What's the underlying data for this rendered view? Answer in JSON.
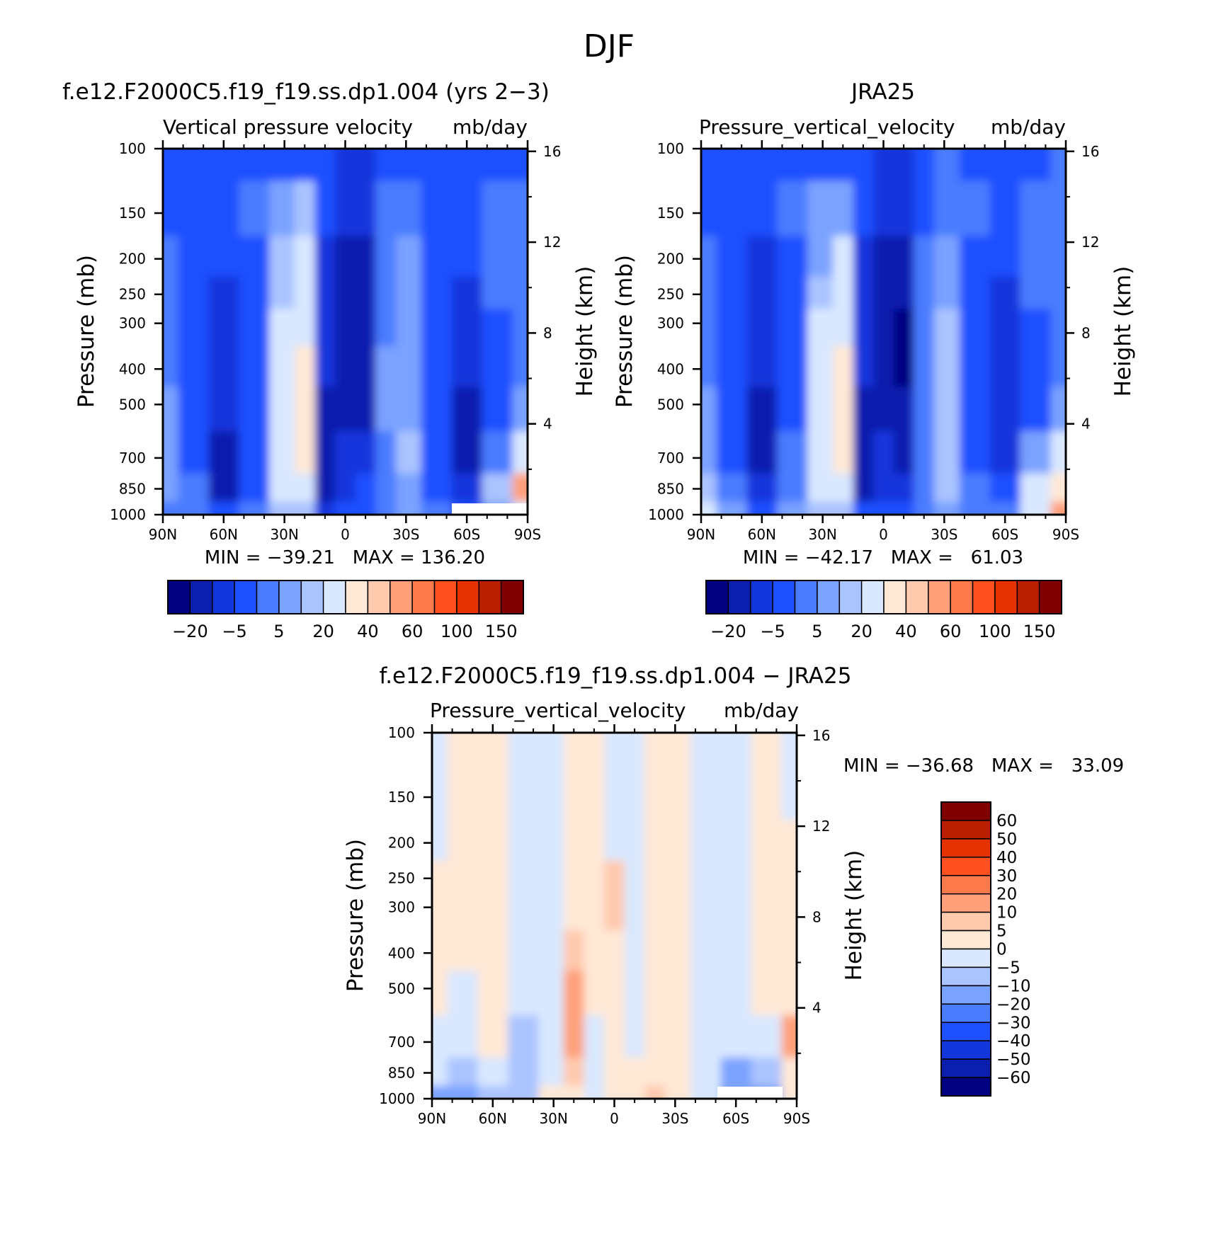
{
  "figure_title": "DJF",
  "chart_data": [
    {
      "type": "heatmap",
      "title": "f.e12.F2000C5.f19_f19.ss.dp1.004 (yrs 2−3)",
      "subtitle": "Vertical pressure velocity",
      "units": "mb/day",
      "ylabel": "Pressure (mb)",
      "y2label": "Height (km)",
      "xticks": [
        "90N",
        "60N",
        "30N",
        "0",
        "30S",
        "60S",
        "90S"
      ],
      "yticks": [
        "100",
        "150",
        "200",
        "250",
        "300",
        "400",
        "500",
        "700",
        "850",
        "1000"
      ],
      "y2ticks": [
        "16",
        "12",
        "8",
        "4"
      ],
      "stats": "MIN = −39.21   MAX = 136.20",
      "colorbar": {
        "labels": [
          "−20",
          "−5",
          "5",
          "20",
          "40",
          "60",
          "100",
          "150"
        ],
        "colors": [
          "#000080",
          "#0a1fae",
          "#1236dc",
          "#1e50ff",
          "#4a7cff",
          "#7aa2ff",
          "#aac4ff",
          "#d9e8ff",
          "#ffe8d6",
          "#ffc9ad",
          "#ffa07a",
          "#ff7a4a",
          "#ff5020",
          "#e63200",
          "#b81e00",
          "#800000"
        ]
      },
      "lat_columns": [
        90,
        75,
        60,
        45,
        30,
        20,
        10,
        0,
        -10,
        -20,
        -30,
        -45,
        -60,
        -75,
        -90
      ],
      "pressure_rows": [
        100,
        150,
        200,
        250,
        300,
        400,
        500,
        700,
        850,
        1000
      ],
      "values": [
        [
          -8,
          -8,
          -7,
          -6,
          -6,
          -7,
          -10,
          -12,
          -12,
          -8,
          -6,
          -6,
          -7,
          -6,
          -6
        ],
        [
          -6,
          -7,
          -8,
          -5,
          2,
          5,
          -10,
          -14,
          -14,
          -4,
          -2,
          -6,
          -8,
          -5,
          -4
        ],
        [
          -5,
          -7,
          -10,
          -6,
          5,
          10,
          -11,
          -16,
          -17,
          -2,
          1,
          -7,
          -10,
          -5,
          -3
        ],
        [
          -4,
          -7,
          -12,
          -7,
          8,
          15,
          -12,
          -18,
          -19,
          -1,
          2,
          -8,
          -12,
          -5,
          -3
        ],
        [
          -3,
          -8,
          -13,
          -7,
          10,
          18,
          -13,
          -20,
          -20,
          -1,
          3,
          -8,
          -13,
          -6,
          -3
        ],
        [
          -2,
          -8,
          -14,
          -6,
          12,
          22,
          -14,
          -20,
          -20,
          0,
          3,
          -9,
          -14,
          -6,
          -2
        ],
        [
          0,
          -7,
          -15,
          -6,
          14,
          22,
          -18,
          -18,
          -16,
          0,
          4,
          -9,
          -16,
          -7,
          0
        ],
        [
          2,
          -6,
          -18,
          -6,
          15,
          20,
          -20,
          -14,
          -12,
          -1,
          5,
          -8,
          -16,
          -2,
          15
        ],
        [
          3,
          -5,
          -16,
          -6,
          14,
          16,
          -20,
          -12,
          -10,
          -2,
          4,
          -6,
          -12,
          5,
          40
        ],
        [
          -4,
          -3,
          -8,
          -2,
          6,
          6,
          -12,
          -9,
          -8,
          -3,
          2,
          -4,
          -7,
          0,
          10
        ]
      ],
      "missing": "white block near 60S–90S at surface"
    },
    {
      "type": "heatmap",
      "title": "JRA25",
      "subtitle": "Pressure_vertical_velocity",
      "units": "mb/day",
      "ylabel": "Pressure (mb)",
      "y2label": "Height (km)",
      "xticks": [
        "90N",
        "60N",
        "30N",
        "0",
        "30S",
        "60S",
        "90S"
      ],
      "yticks": [
        "100",
        "150",
        "200",
        "250",
        "300",
        "400",
        "500",
        "700",
        "850",
        "1000"
      ],
      "y2ticks": [
        "16",
        "12",
        "8",
        "4"
      ],
      "stats": "MIN = −42.17   MAX =   61.03",
      "colorbar": {
        "labels": [
          "−20",
          "−5",
          "5",
          "20",
          "40",
          "60",
          "100",
          "150"
        ],
        "colors": [
          "#000080",
          "#0a1fae",
          "#1236dc",
          "#1e50ff",
          "#4a7cff",
          "#7aa2ff",
          "#aac4ff",
          "#d9e8ff",
          "#ffe8d6",
          "#ffc9ad",
          "#ffa07a",
          "#ff7a4a",
          "#ff5020",
          "#e63200",
          "#b81e00",
          "#800000"
        ]
      },
      "lat_columns": [
        90,
        75,
        60,
        45,
        30,
        20,
        10,
        0,
        -10,
        -20,
        -30,
        -45,
        -60,
        -75,
        -90
      ],
      "pressure_rows": [
        100,
        150,
        200,
        250,
        300,
        400,
        500,
        700,
        850,
        1000
      ],
      "values": [
        [
          -8,
          -10,
          -8,
          -6,
          -6,
          -7,
          -10,
          -12,
          -12,
          -8,
          -5,
          -6,
          -6,
          -6,
          -4
        ],
        [
          -6,
          -10,
          -9,
          -5,
          0,
          4,
          -10,
          -14,
          -14,
          -6,
          -2,
          -5,
          -7,
          -5,
          -2
        ],
        [
          -5,
          -9,
          -11,
          -6,
          4,
          10,
          -12,
          -16,
          -18,
          -4,
          2,
          -6,
          -9,
          -5,
          -2
        ],
        [
          -4,
          -9,
          -13,
          -6,
          8,
          15,
          -13,
          -18,
          -20,
          -3,
          4,
          -7,
          -11,
          -5,
          -2
        ],
        [
          -3,
          -9,
          -14,
          -6,
          10,
          18,
          -14,
          -20,
          -22,
          -2,
          5,
          -8,
          -12,
          -6,
          -2
        ],
        [
          -2,
          -9,
          -15,
          -6,
          12,
          22,
          -15,
          -20,
          -22,
          -1,
          6,
          -8,
          -13,
          -6,
          -2
        ],
        [
          0,
          -8,
          -16,
          -6,
          14,
          22,
          -16,
          -18,
          -20,
          -1,
          7,
          -8,
          -13,
          -6,
          0
        ],
        [
          3,
          -6,
          -17,
          -5,
          15,
          20,
          -18,
          -15,
          -16,
          -2,
          6,
          -7,
          -12,
          2,
          10
        ],
        [
          8,
          -4,
          -15,
          -4,
          13,
          15,
          -18,
          -12,
          -12,
          -3,
          5,
          -5,
          -8,
          10,
          25
        ],
        [
          12,
          0,
          -6,
          0,
          6,
          6,
          -10,
          -8,
          -8,
          -2,
          3,
          -2,
          -3,
          15,
          40
        ]
      ]
    },
    {
      "type": "heatmap",
      "title": "f.e12.F2000C5.f19_f19.ss.dp1.004 − JRA25",
      "subtitle": "Pressure_vertical_velocity",
      "units": "mb/day",
      "ylabel": "Pressure (mb)",
      "y2label": "Height (km)",
      "xticks": [
        "90N",
        "60N",
        "30N",
        "0",
        "30S",
        "60S",
        "90S"
      ],
      "yticks": [
        "100",
        "150",
        "200",
        "250",
        "300",
        "400",
        "500",
        "700",
        "850",
        "1000"
      ],
      "y2ticks": [
        "16",
        "12",
        "8",
        "4"
      ],
      "stats": "MIN = −36.68   MAX =   33.09",
      "colorbar": {
        "labels": [
          "60",
          "50",
          "40",
          "30",
          "20",
          "10",
          "5",
          "0",
          "−5",
          "−10",
          "−20",
          "−30",
          "−40",
          "−50",
          "−60"
        ],
        "colors": [
          "#800000",
          "#b81e00",
          "#e63200",
          "#ff5020",
          "#ff7a4a",
          "#ffa07a",
          "#ffc9ad",
          "#ffe8d6",
          "#d9e8ff",
          "#aac4ff",
          "#7aa2ff",
          "#4a7cff",
          "#1e50ff",
          "#1236dc",
          "#0a1fae",
          "#000080"
        ]
      },
      "lat_columns": [
        90,
        75,
        60,
        45,
        30,
        20,
        10,
        0,
        -10,
        -20,
        -30,
        -45,
        -60,
        -75,
        -90
      ],
      "pressure_rows": [
        100,
        150,
        200,
        250,
        300,
        400,
        500,
        700,
        850,
        1000
      ],
      "values": [
        [
          -1,
          2,
          2,
          -2,
          -2,
          2,
          2,
          -2,
          -2,
          2,
          2,
          -2,
          -2,
          2,
          -1
        ],
        [
          -1,
          2,
          2,
          -2,
          -2,
          2,
          2,
          -2,
          -2,
          2,
          2,
          -2,
          -2,
          2,
          -1
        ],
        [
          -1,
          2,
          2,
          -2,
          -2,
          3,
          2,
          -1,
          -2,
          2,
          2,
          -2,
          -2,
          2,
          1
        ],
        [
          2,
          2,
          1,
          -2,
          -2,
          2,
          2,
          8,
          -2,
          2,
          2,
          -2,
          -2,
          2,
          2
        ],
        [
          2,
          1,
          1,
          -2,
          -2,
          2,
          2,
          8,
          -3,
          2,
          2,
          -2,
          -2,
          2,
          2
        ],
        [
          2,
          1,
          1,
          -3,
          -2,
          8,
          2,
          2,
          -2,
          2,
          2,
          -2,
          -2,
          1,
          2
        ],
        [
          2,
          -1,
          2,
          -5,
          -2,
          10,
          2,
          2,
          -2,
          2,
          2,
          -2,
          -2,
          1,
          2
        ],
        [
          -1,
          -3,
          2,
          -7,
          -2,
          10,
          -2,
          2,
          -2,
          2,
          2,
          -2,
          -5,
          -1,
          12
        ],
        [
          -5,
          -8,
          -1,
          -10,
          -2,
          8,
          -5,
          2,
          2,
          2,
          2,
          -2,
          -12,
          -8,
          4
        ],
        [
          -12,
          -15,
          -10,
          -8,
          2,
          3,
          -2,
          2,
          2,
          5,
          1,
          -1,
          -20,
          -20,
          0
        ]
      ]
    }
  ]
}
